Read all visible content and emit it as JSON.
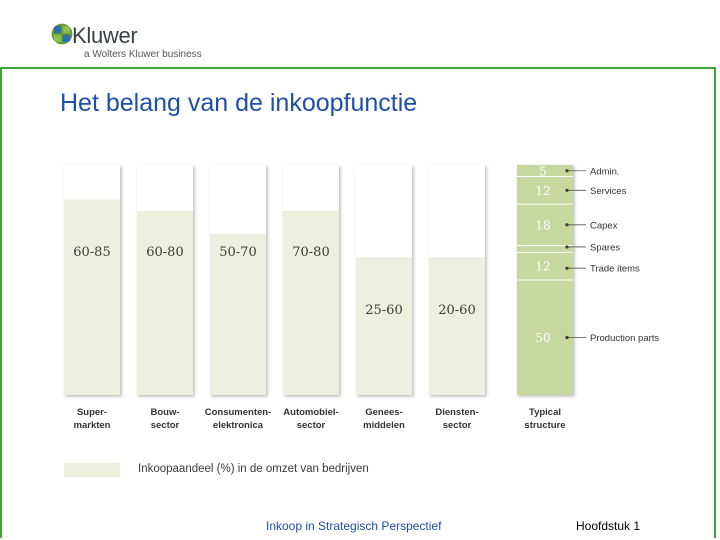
{
  "header": {
    "logo_word": "Kluwer",
    "logo_tagline": "a Wolters Kluwer business",
    "logo_icon": "globe-logo-icon"
  },
  "slide": {
    "title": "Het belang van de inkoopfunctie"
  },
  "footer": {
    "center": "Inkoop in Strategisch Perspectief",
    "right": "Hoofdstuk 1"
  },
  "legend": {
    "label": "Inkoopaandeel (%) in de omzet van bedrijven"
  },
  "colors": {
    "frame": "#3aa836",
    "title": "#1f4fa8",
    "bar_empty": "#ffffff",
    "bar_fill": "#eef0df",
    "typical_fill": "#c7d89e"
  },
  "chart_data": {
    "type": "bar",
    "ylim": [
      0,
      100
    ],
    "categories": [
      {
        "label": [
          "Super-",
          "markten"
        ],
        "range": "60-85",
        "low": 60,
        "high": 85
      },
      {
        "label": [
          "Bouw-",
          "sector"
        ],
        "range": "60-80",
        "low": 60,
        "high": 80
      },
      {
        "label": [
          "Consumenten-",
          "elektronica"
        ],
        "range": "50-70",
        "low": 50,
        "high": 70
      },
      {
        "label": [
          "Automobiel-",
          "sector"
        ],
        "range": "70-80",
        "low": 70,
        "high": 80
      },
      {
        "label": [
          "Genees-",
          "middelen"
        ],
        "range": "25-60",
        "low": 25,
        "high": 60
      },
      {
        "label": [
          "Diensten-",
          "sector"
        ],
        "range": "20-60",
        "low": 20,
        "high": 60
      }
    ],
    "typical": {
      "label": [
        "Typical",
        "structure"
      ],
      "segments": [
        {
          "value": 5,
          "value_label": "5",
          "name": "Admin."
        },
        {
          "value": 12,
          "value_label": "12",
          "name": "Services"
        },
        {
          "value": 18,
          "value_label": "18",
          "name": "Capex"
        },
        {
          "value": 3,
          "value_label": "",
          "name": "Spares"
        },
        {
          "value": 12,
          "value_label": "12",
          "name": "Trade items"
        },
        {
          "value": 50,
          "value_label": "50",
          "name": "Production parts"
        }
      ]
    }
  }
}
